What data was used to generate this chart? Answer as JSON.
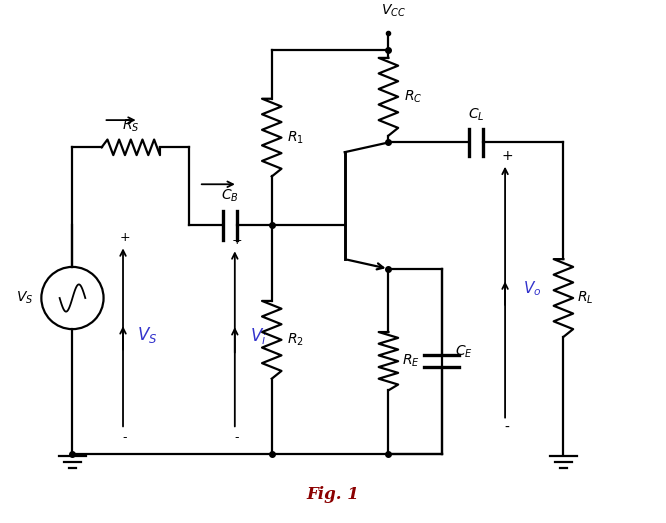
{
  "title": "Fig. 1",
  "title_color": "#8B0000",
  "bg_color": "#ffffff",
  "line_color": "#000000",
  "blue_color": "#3333CC",
  "fig_width": 6.66,
  "fig_height": 5.23,
  "dpi": 100
}
